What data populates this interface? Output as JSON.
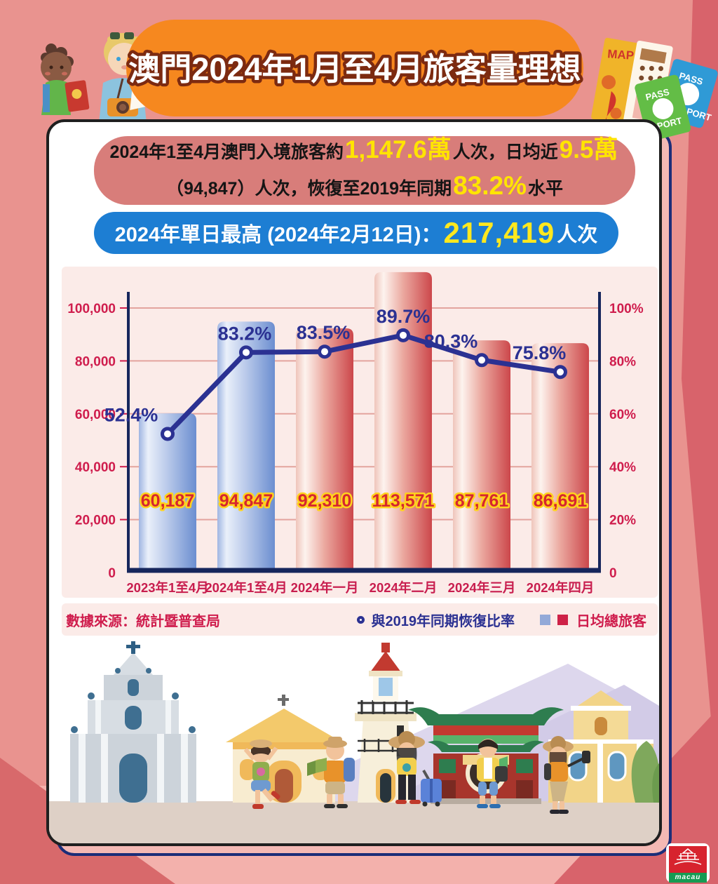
{
  "title": "澳門2024年1月至4月旅客量理想",
  "info_box": {
    "l1a": "2024年1至4月澳門入境旅客約",
    "l1b": "1,147.6萬",
    "l1c": "人次，日均近",
    "l1d": "9.5萬",
    "l2a": "（94,847）人次，恢復至2019年同期",
    "l2b": "83.2%",
    "l2c": "水平"
  },
  "daily_box": {
    "prefix": "2024年單日最高 (2024年2月12日)：",
    "value": "217,419",
    "suffix": "人次"
  },
  "chart_data": {
    "type": "combo-bar-line",
    "categories": [
      "2023年1至4月",
      "2024年1至4月",
      "2024年一月",
      "2024年二月",
      "2024年三月",
      "2024年四月"
    ],
    "series": [
      {
        "name": "日均總旅客",
        "type": "bar",
        "values": [
          60187,
          94847,
          92310,
          113571,
          87761,
          86691
        ],
        "labels": [
          "60,187",
          "94,847",
          "92,310",
          "113,571",
          "87,761",
          "86,691"
        ],
        "bar_styles": [
          "blue",
          "blue",
          "red",
          "red",
          "red",
          "red"
        ]
      },
      {
        "name": "與2019年同期恢復比率",
        "type": "line",
        "values": [
          52.4,
          83.2,
          83.5,
          89.7,
          80.3,
          75.8
        ],
        "labels": [
          "52.4%",
          "83.2%",
          "83.5%",
          "89.7%",
          "80.3%",
          "75.8%"
        ]
      }
    ],
    "left_axis": {
      "ticks": [
        "0",
        "20,000",
        "40,000",
        "60,000",
        "80,000",
        "100,000"
      ],
      "max": 100000
    },
    "right_axis": {
      "ticks": [
        "0",
        "20%",
        "40%",
        "60%",
        "80%",
        "100%"
      ],
      "max": 100
    },
    "grid": true,
    "legend_position": "bottom-right",
    "source": "數據來源：統計暨普查局"
  },
  "legend": {
    "line_label": "與2019年同期恢復比率",
    "bars_label": "日均總旅客"
  },
  "colors": {
    "banner_orange": "#f6881f",
    "info_box_red": "#d87d7a",
    "daily_box_blue": "#1d7ed3",
    "highlight_yellow": "#ffe400",
    "line_navy": "#2b3192",
    "axis_crimson": "#cf1d4d",
    "bar_blue_end": "#6b8ed0",
    "bar_red_end": "#cc474b",
    "legend_blue_square": "#93a9d8",
    "legend_red_square": "#ce2147"
  },
  "decor": {
    "map_label": "MAP",
    "passport_word_top": "PASS",
    "passport_word_bottom": "PORT",
    "logo_text": "macau"
  }
}
